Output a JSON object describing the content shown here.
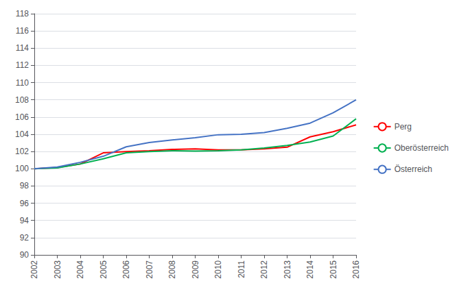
{
  "chart_data": {
    "type": "line",
    "x": [
      2002,
      2003,
      2004,
      2005,
      2006,
      2007,
      2008,
      2009,
      2010,
      2011,
      2012,
      2013,
      2014,
      2015,
      2016
    ],
    "xlim": [
      2002,
      2016
    ],
    "xticks": [
      2002,
      2003,
      2004,
      2005,
      2006,
      2007,
      2008,
      2009,
      2010,
      2011,
      2012,
      2013,
      2014,
      2015,
      2016
    ],
    "ylim": [
      90,
      118
    ],
    "yticks": [
      90,
      92,
      94,
      96,
      98,
      100,
      102,
      104,
      106,
      108,
      110,
      112,
      114,
      116,
      118
    ],
    "series": [
      {
        "name": "Perg",
        "color": "#ff0000",
        "values": [
          100.0,
          100.15,
          100.55,
          101.85,
          102.0,
          102.1,
          102.25,
          102.3,
          102.2,
          102.2,
          102.3,
          102.5,
          103.7,
          104.3,
          105.1
        ]
      },
      {
        "name": "Oberösterreich",
        "color": "#00b050",
        "values": [
          100.0,
          100.1,
          100.55,
          101.15,
          101.85,
          102.0,
          102.1,
          102.05,
          102.1,
          102.2,
          102.4,
          102.7,
          103.1,
          103.8,
          105.8
        ]
      },
      {
        "name": "Österreich",
        "color": "#4472c4",
        "values": [
          100.0,
          100.2,
          100.75,
          101.45,
          102.55,
          103.05,
          103.35,
          103.6,
          103.95,
          104.0,
          104.2,
          104.7,
          105.3,
          106.5,
          108.0
        ]
      }
    ],
    "grid": true,
    "legend": "right"
  }
}
